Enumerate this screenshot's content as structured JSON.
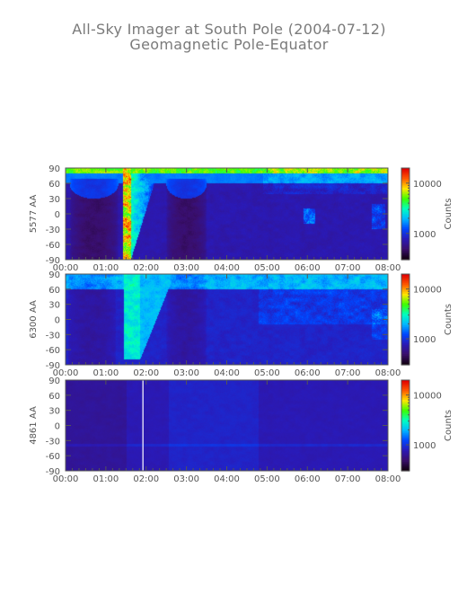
{
  "title": "All-Sky Imager at South Pole (2004-07-12)",
  "subtitle": "Geomagnetic Pole-Equator",
  "colors": {
    "axis": "#555555",
    "colormap": [
      "#120012",
      "#3a0f6e",
      "#2a1ab8",
      "#0047ff",
      "#00b8ff",
      "#00ffc0",
      "#3cff00",
      "#ffe600",
      "#ff5a00",
      "#e00000"
    ]
  },
  "chart_data": [
    {
      "type": "heatmap",
      "ylabel": "5577 AA",
      "x_ticks": [
        "00:00",
        "01:00",
        "02:00",
        "03:00",
        "04:00",
        "05:00",
        "06:00",
        "07:00",
        "08:00"
      ],
      "y_ticks": [
        "90",
        "60",
        "30",
        "0",
        "-30",
        "-60",
        "-90"
      ],
      "ylim": [
        -90,
        90
      ],
      "xlim": [
        "00:00",
        "08:00"
      ],
      "colorbar_label": "Counts",
      "colorbar_ticks": [
        "10000",
        "1000"
      ],
      "colorbar_scale": "log"
    },
    {
      "type": "heatmap",
      "ylabel": "6300 AA",
      "x_ticks": [
        "00:00",
        "01:00",
        "02:00",
        "03:00",
        "04:00",
        "05:00",
        "06:00",
        "07:00",
        "08:00"
      ],
      "y_ticks": [
        "90",
        "60",
        "30",
        "0",
        "-30",
        "-60",
        "-90"
      ],
      "ylim": [
        -90,
        90
      ],
      "xlim": [
        "00:00",
        "08:00"
      ],
      "colorbar_label": "Counts",
      "colorbar_ticks": [
        "10000",
        "1000"
      ],
      "colorbar_scale": "log"
    },
    {
      "type": "heatmap",
      "ylabel": "4861 AA",
      "x_ticks": [
        "00:00",
        "01:00",
        "02:00",
        "03:00",
        "04:00",
        "05:00",
        "06:00",
        "07:00",
        "08:00"
      ],
      "y_ticks": [
        "90",
        "60",
        "30",
        "0",
        "-30",
        "-60",
        "-90"
      ],
      "ylim": [
        -90,
        90
      ],
      "xlim": [
        "00:00",
        "08:00"
      ],
      "colorbar_label": "Counts",
      "colorbar_ticks": [
        "10000",
        "1000"
      ],
      "colorbar_scale": "log"
    }
  ]
}
